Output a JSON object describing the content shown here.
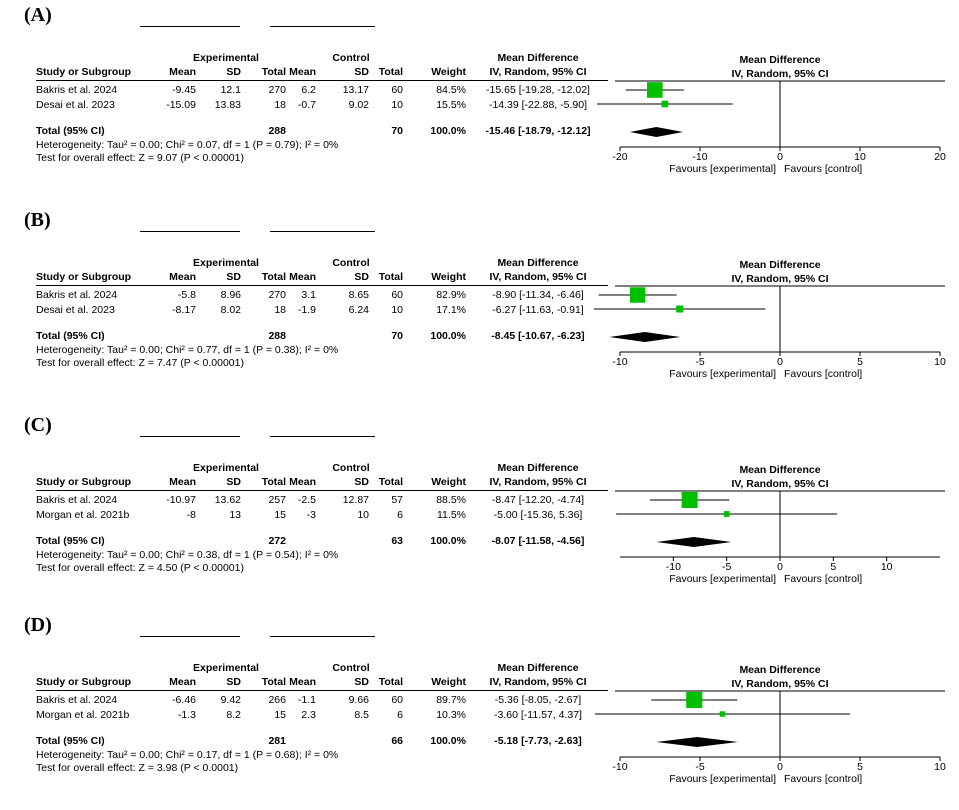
{
  "columns": {
    "group_experimental": "Experimental",
    "group_control": "Control",
    "md_top": "Mean Difference",
    "md_sub": "IV, Random, 95% CI",
    "study": "Study or Subgroup",
    "mean": "Mean",
    "sd": "SD",
    "total": "Total",
    "weight": "Weight",
    "plot_top": "Mean Difference",
    "plot_sub": "IV, Random, 95% CI"
  },
  "panels": [
    {
      "label": "(A)",
      "studies": [
        {
          "name": "Bakris et al. 2024",
          "e_mean": "-9.45",
          "e_sd": "12.1",
          "e_total": "270",
          "c_mean": "6.2",
          "c_sd": "13.17",
          "c_total": "60",
          "weight": "84.5%",
          "ci": "-15.65 [-19.28, -12.02]"
        },
        {
          "name": "Desai et al. 2023",
          "e_mean": "-15.09",
          "e_sd": "13.83",
          "e_total": "18",
          "c_mean": "-0.7",
          "c_sd": "9.02",
          "c_total": "10",
          "weight": "15.5%",
          "ci": "-14.39 [-22.88, -5.90]"
        }
      ],
      "total": {
        "name": "Total (95% CI)",
        "e_total": "288",
        "c_total": "70",
        "weight": "100.0%",
        "ci": "-15.46 [-18.79, -12.12]"
      },
      "heterogeneity": "Heterogeneity: Tau² = 0.00; Chi² = 0.07, df = 1 (P = 0.79); I² = 0%",
      "overall": "Test for overall effect: Z = 9.07 (P < 0.00001)",
      "favours_left": "Favours [experimental]",
      "favours_right": "Favours [control]"
    },
    {
      "label": "(B)",
      "studies": [
        {
          "name": "Bakris et al. 2024",
          "e_mean": "-5.8",
          "e_sd": "8.96",
          "e_total": "270",
          "c_mean": "3.1",
          "c_sd": "8.65",
          "c_total": "60",
          "weight": "82.9%",
          "ci": "-8.90 [-11.34, -6.46]"
        },
        {
          "name": "Desai et al. 2023",
          "e_mean": "-8.17",
          "e_sd": "8.02",
          "e_total": "18",
          "c_mean": "-1.9",
          "c_sd": "6.24",
          "c_total": "10",
          "weight": "17.1%",
          "ci": "-6.27 [-11.63, -0.91]"
        }
      ],
      "total": {
        "name": "Total (95% CI)",
        "e_total": "288",
        "c_total": "70",
        "weight": "100.0%",
        "ci": "-8.45 [-10.67, -6.23]"
      },
      "heterogeneity": "Heterogeneity: Tau² = 0.00; Chi² = 0.77, df = 1 (P = 0.38); I² = 0%",
      "overall": "Test for overall effect: Z = 7.47 (P < 0.00001)",
      "favours_left": "Favours [experimental]",
      "favours_right": "Favours [control]"
    },
    {
      "label": "(C)",
      "studies": [
        {
          "name": "Bakris et al. 2024",
          "e_mean": "-10.97",
          "e_sd": "13.62",
          "e_total": "257",
          "c_mean": "-2.5",
          "c_sd": "12.87",
          "c_total": "57",
          "weight": "88.5%",
          "ci": "-8.47 [-12.20, -4.74]"
        },
        {
          "name": "Morgan et al. 2021b",
          "e_mean": "-8",
          "e_sd": "13",
          "e_total": "15",
          "c_mean": "-3",
          "c_sd": "10",
          "c_total": "6",
          "weight": "11.5%",
          "ci": "-5.00 [-15.36, 5.36]"
        }
      ],
      "total": {
        "name": "Total (95% CI)",
        "e_total": "272",
        "c_total": "63",
        "weight": "100.0%",
        "ci": "-8.07 [-11.58, -4.56]"
      },
      "heterogeneity": "Heterogeneity: Tau² = 0.00; Chi² = 0.38, df = 1 (P = 0.54); I² = 0%",
      "overall": "Test for overall effect: Z = 4.50 (P < 0.00001)",
      "favours_left": "Favours [experimental]",
      "favours_right": "Favours [control]"
    },
    {
      "label": "(D)",
      "studies": [
        {
          "name": "Bakris et al. 2024",
          "e_mean": "-6.46",
          "e_sd": "9.42",
          "e_total": "266",
          "c_mean": "-1.1",
          "c_sd": "9.66",
          "c_total": "60",
          "weight": "89.7%",
          "ci": "-5.36 [-8.05, -2.67]"
        },
        {
          "name": "Morgan et al. 2021b",
          "e_mean": "-1.3",
          "e_sd": "8.2",
          "e_total": "15",
          "c_mean": "2.3",
          "c_sd": "8.5",
          "c_total": "6",
          "weight": "10.3%",
          "ci": "-3.60 [-11.57, 4.37]"
        }
      ],
      "total": {
        "name": "Total (95% CI)",
        "e_total": "281",
        "c_total": "66",
        "weight": "100.0%",
        "ci": "-5.18 [-7.73, -2.63]"
      },
      "heterogeneity": "Heterogeneity: Tau² = 0.00; Chi² = 0.17, df = 1 (P = 0.68); I² = 0%",
      "overall": "Test for overall effect: Z = 3.98 (P < 0.0001)",
      "favours_left": "Favours [experimental]",
      "favours_right": "Favours [control]"
    }
  ],
  "chart_data": [
    {
      "type": "forest",
      "xlim": [
        -20,
        20
      ],
      "xticks": [
        "-20",
        "-10",
        "0",
        "10",
        "20"
      ],
      "study_points": [
        {
          "study": "Bakris et al. 2024",
          "md": -15.65,
          "lo": -19.28,
          "hi": -12.02,
          "weight": 84.5
        },
        {
          "study": "Desai et al. 2023",
          "md": -14.39,
          "lo": -22.88,
          "hi": -5.9,
          "weight": 15.5
        }
      ],
      "pooled": {
        "md": -15.46,
        "lo": -18.79,
        "hi": -12.12
      },
      "colors": {
        "study": "#00c000",
        "pooled": "#000000"
      }
    },
    {
      "type": "forest",
      "xlim": [
        -10,
        10
      ],
      "xticks": [
        "-10",
        "-5",
        "0",
        "5",
        "10"
      ],
      "study_points": [
        {
          "study": "Bakris et al. 2024",
          "md": -8.9,
          "lo": -11.34,
          "hi": -6.46,
          "weight": 82.9
        },
        {
          "study": "Desai et al. 2023",
          "md": -6.27,
          "lo": -11.63,
          "hi": -0.91,
          "weight": 17.1
        }
      ],
      "pooled": {
        "md": -8.45,
        "lo": -10.67,
        "hi": -6.23
      },
      "colors": {
        "study": "#00c000",
        "pooled": "#000000"
      }
    },
    {
      "type": "forest",
      "xlim": [
        -15,
        15
      ],
      "xticks": [
        "-10",
        "-5",
        "0",
        "5",
        "10"
      ],
      "study_points": [
        {
          "study": "Bakris et al. 2024",
          "md": -8.47,
          "lo": -12.2,
          "hi": -4.74,
          "weight": 88.5
        },
        {
          "study": "Morgan et al. 2021b",
          "md": -5.0,
          "lo": -15.36,
          "hi": 5.36,
          "weight": 11.5
        }
      ],
      "pooled": {
        "md": -8.07,
        "lo": -11.58,
        "hi": -4.56
      },
      "colors": {
        "study": "#00c000",
        "pooled": "#000000"
      }
    },
    {
      "type": "forest",
      "xlim": [
        -10,
        10
      ],
      "xticks": [
        "-10",
        "-5",
        "0",
        "5",
        "10"
      ],
      "study_points": [
        {
          "study": "Bakris et al. 2024",
          "md": -5.36,
          "lo": -8.05,
          "hi": -2.67,
          "weight": 89.7
        },
        {
          "study": "Morgan et al. 2021b",
          "md": -3.6,
          "lo": -11.57,
          "hi": 4.37,
          "weight": 10.3
        }
      ],
      "pooled": {
        "md": -5.18,
        "lo": -7.73,
        "hi": -2.63
      },
      "colors": {
        "study": "#00c000",
        "pooled": "#000000"
      }
    }
  ]
}
